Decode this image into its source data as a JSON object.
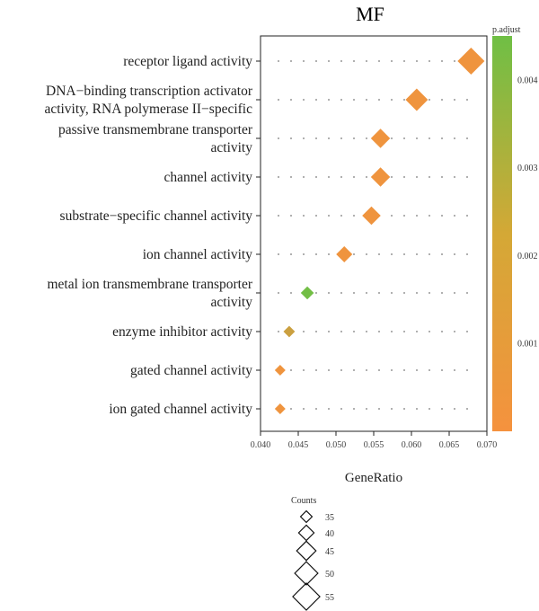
{
  "chart_data": {
    "type": "scatter",
    "title": "MF",
    "xlabel": "GeneRatio",
    "ylabel": "",
    "xlim": [
      0.04,
      0.07
    ],
    "xticks": [
      "0.040",
      "0.045",
      "0.050",
      "0.055",
      "0.060",
      "0.065",
      "0.070"
    ],
    "grid": false,
    "categories": [
      [
        "receptor ligand activity"
      ],
      [
        "DNA−binding transcription activator",
        "activity, RNA polymerase II−specific"
      ],
      [
        "passive transmembrane transporter",
        "activity"
      ],
      [
        "channel activity"
      ],
      [
        "substrate−specific channel activity"
      ],
      [
        "ion channel activity"
      ],
      [
        "metal ion transmembrane transporter",
        "activity"
      ],
      [
        "enzyme inhibitor activity"
      ],
      [
        "gated channel activity"
      ],
      [
        "ion gated channel activity"
      ]
    ],
    "points": [
      {
        "x": 0.0679,
        "count": 55,
        "p_adjust": 0.0002
      },
      {
        "x": 0.0607,
        "count": 49,
        "p_adjust": 0.0002
      },
      {
        "x": 0.0559,
        "count": 45,
        "p_adjust": 0.0002
      },
      {
        "x": 0.0559,
        "count": 45,
        "p_adjust": 0.0002
      },
      {
        "x": 0.0547,
        "count": 44,
        "p_adjust": 0.0002
      },
      {
        "x": 0.0511,
        "count": 41,
        "p_adjust": 0.0002
      },
      {
        "x": 0.0462,
        "count": 37,
        "p_adjust": 0.0044
      },
      {
        "x": 0.0438,
        "count": 35,
        "p_adjust": 0.0014
      },
      {
        "x": 0.0426,
        "count": 34,
        "p_adjust": 0.0002
      },
      {
        "x": 0.0426,
        "count": 34,
        "p_adjust": 0.0002
      }
    ],
    "color_legend": {
      "title": "p.adjust",
      "ticks": [
        "0.004",
        "0.003",
        "0.002",
        "0.001"
      ],
      "tick_values": [
        0.004,
        0.003,
        0.002,
        0.001
      ],
      "range": [
        0.0,
        0.0045
      ],
      "low_color": "#f5923e",
      "high_color": "#6fbf45",
      "position": "right"
    },
    "size_legend": {
      "title": "Counts",
      "values": [
        35,
        40,
        45,
        50,
        55
      ],
      "position": "bottom"
    }
  }
}
